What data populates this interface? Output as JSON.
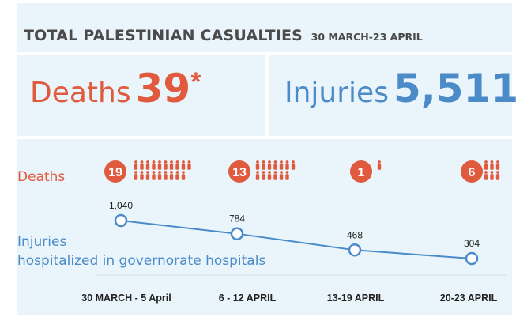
{
  "header": {
    "title": "TOTAL PALESTINIAN CASUALTIES",
    "date_range": "30 MARCH-23 APRIL"
  },
  "summary": {
    "deaths_label": "Deaths",
    "deaths_value": "39",
    "deaths_mark": "*",
    "injuries_label": "Injuries",
    "injuries_value": "5,511"
  },
  "colors": {
    "deaths": "#e05a3e",
    "injuries": "#4a8bc8",
    "title": "#4b4b4b",
    "panel": "#eaf5fb"
  },
  "chart_data": {
    "type": "line",
    "categories": [
      "30 MARCH - 5 April",
      "6 - 12 APRIL",
      "13-19 APRIL",
      "20-23 APRIL"
    ],
    "deaths_row_label": "Deaths",
    "deaths": [
      19,
      13,
      1,
      6
    ],
    "series": [
      {
        "name": "Injuries hospitalized in governorate hospitals",
        "values": [
          1040,
          784,
          468,
          304
        ],
        "value_labels": [
          "1,040",
          "784",
          "468",
          "304"
        ]
      }
    ],
    "legend_lines": [
      "Injuries",
      "hospitalized in governorate hospitals"
    ],
    "icons": [
      "person-icon"
    ]
  }
}
